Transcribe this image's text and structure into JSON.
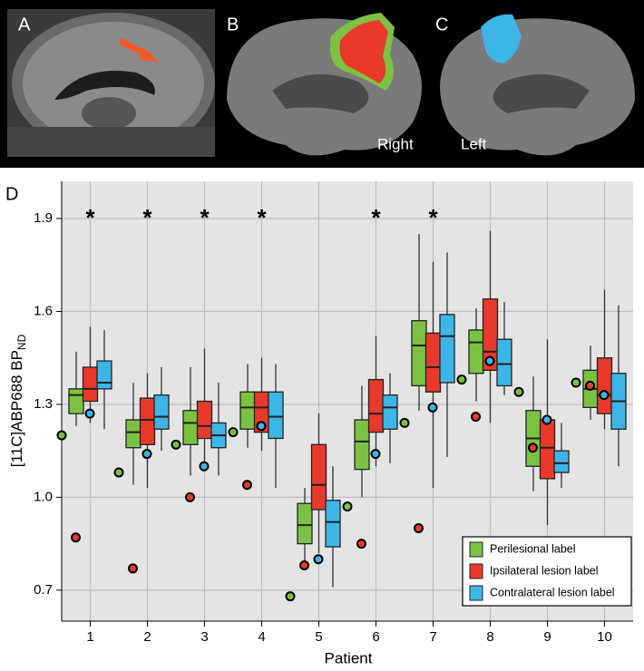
{
  "panels": {
    "labels": [
      "A",
      "B",
      "C",
      "D"
    ],
    "right": "Right",
    "left": "Left"
  },
  "chart_data": {
    "type": "box",
    "xlabel": "Patient",
    "ylabel": "[11C]ABP688 BP",
    "ylabel_sub": "ND",
    "categories": [
      "1",
      "2",
      "3",
      "4",
      "5",
      "6",
      "7",
      "8",
      "9",
      "10"
    ],
    "ylim": [
      0.6,
      2.02
    ],
    "yticks": [
      0.7,
      {
        "value": 1,
        "label": "1.0"
      },
      1.3,
      1.6,
      1.9
    ],
    "grid": true,
    "legend": "lower right",
    "significance_marker": "*",
    "significant": [
      true,
      true,
      true,
      true,
      false,
      true,
      true,
      false,
      false,
      false
    ],
    "series": [
      {
        "name": "Perilesional label",
        "color": "#7cc242",
        "low": [
          1.23,
          1.04,
          1.07,
          1.16,
          0.79,
          1.0,
          1.28,
          1.31,
          1.02,
          1.25
        ],
        "q1": [
          1.27,
          1.16,
          1.17,
          1.22,
          0.85,
          1.09,
          1.36,
          1.4,
          1.1,
          1.29
        ],
        "median": [
          1.33,
          1.21,
          1.24,
          1.29,
          0.91,
          1.18,
          1.49,
          1.5,
          1.19,
          1.35
        ],
        "q3": [
          1.35,
          1.25,
          1.28,
          1.34,
          0.98,
          1.25,
          1.57,
          1.54,
          1.28,
          1.41
        ],
        "high": [
          1.47,
          1.37,
          1.42,
          1.43,
          1.03,
          1.36,
          1.85,
          1.61,
          1.39,
          1.49
        ],
        "points": [
          1.2,
          1.08,
          1.17,
          1.21,
          0.68,
          0.97,
          1.24,
          1.38,
          1.34,
          1.37
        ]
      },
      {
        "name": "Ipsilateral lesion label",
        "color": "#e8392b",
        "low": [
          1.24,
          1.03,
          1.09,
          1.15,
          0.82,
          1.1,
          1.03,
          1.24,
          0.91,
          1.22
        ],
        "q1": [
          1.31,
          1.17,
          1.19,
          1.21,
          0.96,
          1.21,
          1.34,
          1.41,
          1.06,
          1.27
        ],
        "median": [
          1.35,
          1.25,
          1.23,
          1.29,
          1.04,
          1.27,
          1.42,
          1.47,
          1.16,
          1.33
        ],
        "q3": [
          1.42,
          1.32,
          1.31,
          1.34,
          1.17,
          1.38,
          1.53,
          1.64,
          1.25,
          1.45
        ],
        "high": [
          1.55,
          1.4,
          1.48,
          1.45,
          1.27,
          1.52,
          1.76,
          1.86,
          1.51,
          1.67
        ],
        "points": [
          0.87,
          0.77,
          1.0,
          1.04,
          0.78,
          0.85,
          0.9,
          1.26,
          1.16,
          1.36
        ]
      },
      {
        "name": "Contralateral lesion label",
        "color": "#3db5e6",
        "low": [
          1.22,
          1.15,
          1.07,
          1.03,
          0.71,
          1.11,
          1.13,
          1.33,
          1.03,
          1.1
        ],
        "q1": [
          1.35,
          1.22,
          1.16,
          1.19,
          0.84,
          1.22,
          1.37,
          1.36,
          1.08,
          1.22
        ],
        "median": [
          1.37,
          1.26,
          1.2,
          1.26,
          0.92,
          1.29,
          1.52,
          1.43,
          1.11,
          1.31
        ],
        "q3": [
          1.44,
          1.33,
          1.24,
          1.34,
          0.99,
          1.33,
          1.59,
          1.51,
          1.15,
          1.4
        ],
        "high": [
          1.54,
          1.42,
          1.37,
          1.43,
          1.1,
          1.4,
          1.79,
          1.63,
          1.24,
          1.62
        ],
        "points": [
          1.27,
          1.14,
          1.1,
          1.23,
          0.8,
          1.14,
          1.29,
          1.44,
          1.25,
          1.33
        ]
      }
    ]
  }
}
